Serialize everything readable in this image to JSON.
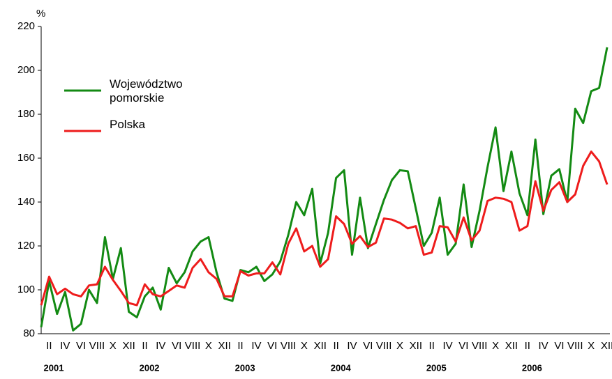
{
  "chart_data": {
    "type": "line",
    "y_unit": "%",
    "categories": [
      null,
      "II",
      null,
      "IV",
      null,
      "VI",
      null,
      "VIII",
      null,
      "X",
      null,
      "XII",
      null,
      "II",
      null,
      "IV",
      null,
      "VI",
      null,
      "VIII",
      null,
      "X",
      null,
      "XII",
      null,
      "II",
      null,
      "IV",
      null,
      "VI",
      null,
      "VIII",
      null,
      "X",
      null,
      "XII",
      null,
      "II",
      null,
      "IV",
      null,
      "VI",
      null,
      "VIII",
      null,
      "X",
      null,
      "XII",
      null,
      "II",
      null,
      "IV",
      null,
      "VI",
      null,
      "VIII",
      null,
      "X",
      null,
      "XII",
      null,
      "II",
      null,
      "IV",
      null,
      "VI",
      null,
      "VIII",
      null,
      "X",
      null,
      "XII"
    ],
    "years": [
      "2001",
      "2002",
      "2003",
      "2004",
      "2005",
      "2006"
    ],
    "series": [
      {
        "name": "Województwo pomorskie",
        "color": "#138a13",
        "values": [
          83,
          104,
          89,
          99,
          81.5,
          84.5,
          100,
          94,
          124,
          105,
          119,
          90,
          87.5,
          97,
          101,
          91,
          110,
          103,
          108,
          117.5,
          122,
          124,
          108,
          96,
          95,
          109,
          108,
          110.5,
          104,
          107,
          113,
          125,
          140,
          134,
          146,
          112,
          126,
          151,
          154.5,
          116,
          142,
          119,
          130,
          141,
          150,
          154.5,
          154,
          137,
          120,
          126,
          142,
          116,
          121,
          148,
          119.5,
          136,
          156,
          174,
          145,
          163,
          144,
          134,
          168.5,
          134.5,
          152,
          155,
          140,
          182.5,
          176,
          190.5,
          192,
          210.5
        ]
      },
      {
        "name": "Polska",
        "color": "#ee1c1c",
        "values": [
          93,
          106,
          98,
          100.5,
          98,
          97,
          102,
          102.5,
          110.5,
          104.5,
          99.5,
          94,
          93,
          102.5,
          98,
          97,
          99.5,
          102,
          101,
          110,
          114,
          108,
          105,
          97,
          97,
          108.5,
          106.5,
          107.5,
          107.5,
          112.5,
          107,
          121,
          128,
          117.5,
          120,
          110.5,
          114,
          133.5,
          130,
          121,
          124.5,
          119.5,
          121.5,
          132.5,
          132,
          130.5,
          128,
          129,
          116,
          117,
          129,
          128.5,
          122,
          133,
          122.5,
          127,
          140.5,
          142,
          141.5,
          140,
          127,
          129,
          149.5,
          136,
          145.5,
          149,
          140,
          143.5,
          156.5,
          163,
          158.5,
          148
        ]
      }
    ],
    "ylim": [
      80,
      220
    ],
    "yticks": [
      80,
      100,
      120,
      140,
      160,
      180,
      200,
      220
    ],
    "grid": false
  }
}
